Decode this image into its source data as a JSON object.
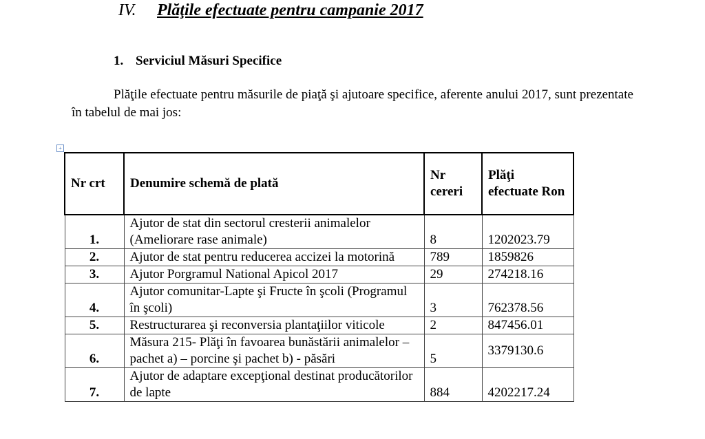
{
  "heading": {
    "number": "IV.",
    "title": "Plăţile efectuate pentru campanie 2017"
  },
  "subheading": {
    "number": "1.",
    "title": "Serviciul Măsuri  Specifice"
  },
  "paragraph": "Plăţile efectuate pentru măsurile de piaţă şi ajutoare specifice,  aferente anului 2017, sunt prezentate în tabelul de mai jos:",
  "table": {
    "headers": [
      "Nr crt",
      "Denumire schemă de plată",
      "Nr cereri",
      "Plăţi efectuate Ron"
    ],
    "rows": [
      {
        "nr": "1.",
        "name": "Ajutor de stat din sectorul cresterii animalelor (Ameliorare rase animale)",
        "cereri": "8",
        "plati": "1202023.79"
      },
      {
        "nr": "2.",
        "name": "Ajutor de stat pentru reducerea accizei la motorină",
        "cereri": "789",
        "plati": "1859826"
      },
      {
        "nr": "3.",
        "name": "Ajutor Porgramul National Apicol 2017",
        "cereri": "29",
        "plati": "274218.16"
      },
      {
        "nr": "4.",
        "name": "Ajutor comunitar-Lapte şi Fructe în şcoli (Programul în şcoli)",
        "cereri": "3",
        "plati": "762378.56"
      },
      {
        "nr": "5.",
        "name": "Restructurarea şi reconversia plantaţiilor viticole",
        "cereri": "2",
        "plati": "847456.01"
      },
      {
        "nr": "6.",
        "name": " Măsura 215- Plăţi în favoarea bunăstării animalelor – pachet a) – porcine şi pachet b) - păsări",
        "cereri": "5",
        "plati": "3379130.6"
      },
      {
        "nr": "7.",
        "name": "Ajutor de adaptare excepţional destinat producătorilor de lapte",
        "cereri": "884",
        "plati": "4202217.24"
      }
    ]
  }
}
